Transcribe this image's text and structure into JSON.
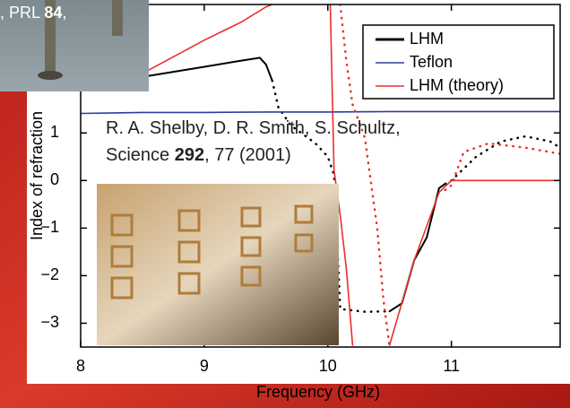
{
  "caption": {
    "before": ", PRL ",
    "bold": "84",
    "after": ","
  },
  "citation": {
    "before": "R. A. Shelby, D. R. Smith, S. Schultz, Science ",
    "bold": "292",
    "after": ", 77 (2001)"
  },
  "chart_data": {
    "type": "line",
    "xlabel": "Frequency (GHz)",
    "ylabel": "Index of refraction",
    "xlim": [
      8,
      11.88
    ],
    "ylim": [
      -3.5,
      3.7
    ],
    "xticks": [
      8,
      9,
      10,
      11
    ],
    "yticks": [
      {
        "value": -3,
        "label": "−3"
      },
      {
        "value": -2,
        "label": "−2"
      },
      {
        "value": -1,
        "label": "−1"
      },
      0,
      1
    ],
    "legend": "upper right",
    "series": [
      {
        "name": "LHM",
        "color": "#000000",
        "style": "solid",
        "x": [
          8.55,
          9.0,
          9.3,
          9.45,
          9.5,
          9.55
        ],
        "values": [
          2.2,
          2.39,
          2.52,
          2.58,
          2.44,
          2.1
        ]
      },
      {
        "color": "#000000",
        "style": "dotted",
        "x": [
          9.55,
          9.6,
          9.7,
          9.8,
          9.9,
          10.0,
          10.05,
          10.08,
          10.1,
          10.3,
          10.5
        ],
        "values": [
          2.1,
          1.54,
          1.16,
          0.97,
          0.78,
          0.5,
          0.12,
          -1.5,
          -2.7,
          -2.76,
          -2.75
        ]
      },
      {
        "color": "#000000",
        "style": "solid",
        "x": [
          10.5,
          10.6,
          10.7,
          10.8,
          10.9,
          10.95
        ],
        "values": [
          -2.75,
          -2.58,
          -1.67,
          -1.2,
          -0.16,
          -0.07
        ]
      },
      {
        "color": "#000000",
        "style": "dotted",
        "x": [
          10.95,
          11.0,
          11.2,
          11.4,
          11.6,
          11.8,
          11.88
        ],
        "values": [
          -0.07,
          0,
          0.5,
          0.82,
          0.93,
          0.82,
          0.69
        ]
      },
      {
        "name": "Teflon",
        "color": "#2a3fa0",
        "style": "solid",
        "x": [
          8.0,
          8.5,
          9.0,
          9.5,
          10.0,
          10.5,
          11.0,
          11.5,
          11.88
        ],
        "values": [
          1.41,
          1.43,
          1.43,
          1.44,
          1.44,
          1.45,
          1.45,
          1.45,
          1.45
        ]
      },
      {
        "name": "LHM (theory)",
        "color": "#e8302a",
        "style": "solid",
        "x": [
          8.5,
          9.0,
          9.3,
          9.5,
          9.55
        ],
        "values": [
          2.25,
          2.95,
          3.33,
          3.65,
          3.7
        ]
      },
      {
        "color": "#e8302a",
        "style": "solid",
        "x": [
          10.02,
          10.05,
          10.1,
          10.15,
          10.2
        ],
        "values": [
          3.7,
          0.22,
          -0.73,
          -1.86,
          -3.46
        ]
      },
      {
        "color": "#e8302a",
        "style": "dotted",
        "x": [
          10.1,
          10.15,
          10.2,
          10.3,
          10.4,
          10.45,
          10.5
        ],
        "values": [
          3.7,
          2.5,
          1.6,
          0.9,
          -1.0,
          -2.5,
          -3.5
        ]
      },
      {
        "color": "#e8302a",
        "style": "solid",
        "x": [
          10.5,
          10.7,
          10.9,
          11.0,
          11.5,
          11.88
        ],
        "values": [
          -3.46,
          -1.67,
          -0.25,
          0,
          0,
          0
        ]
      },
      {
        "color": "#e8302a",
        "style": "dotted",
        "x": [
          10.95,
          11.0,
          11.1,
          11.3,
          11.6,
          11.88
        ],
        "values": [
          -0.2,
          -0.1,
          0.6,
          0.78,
          0.69,
          0.56
        ]
      }
    ]
  }
}
